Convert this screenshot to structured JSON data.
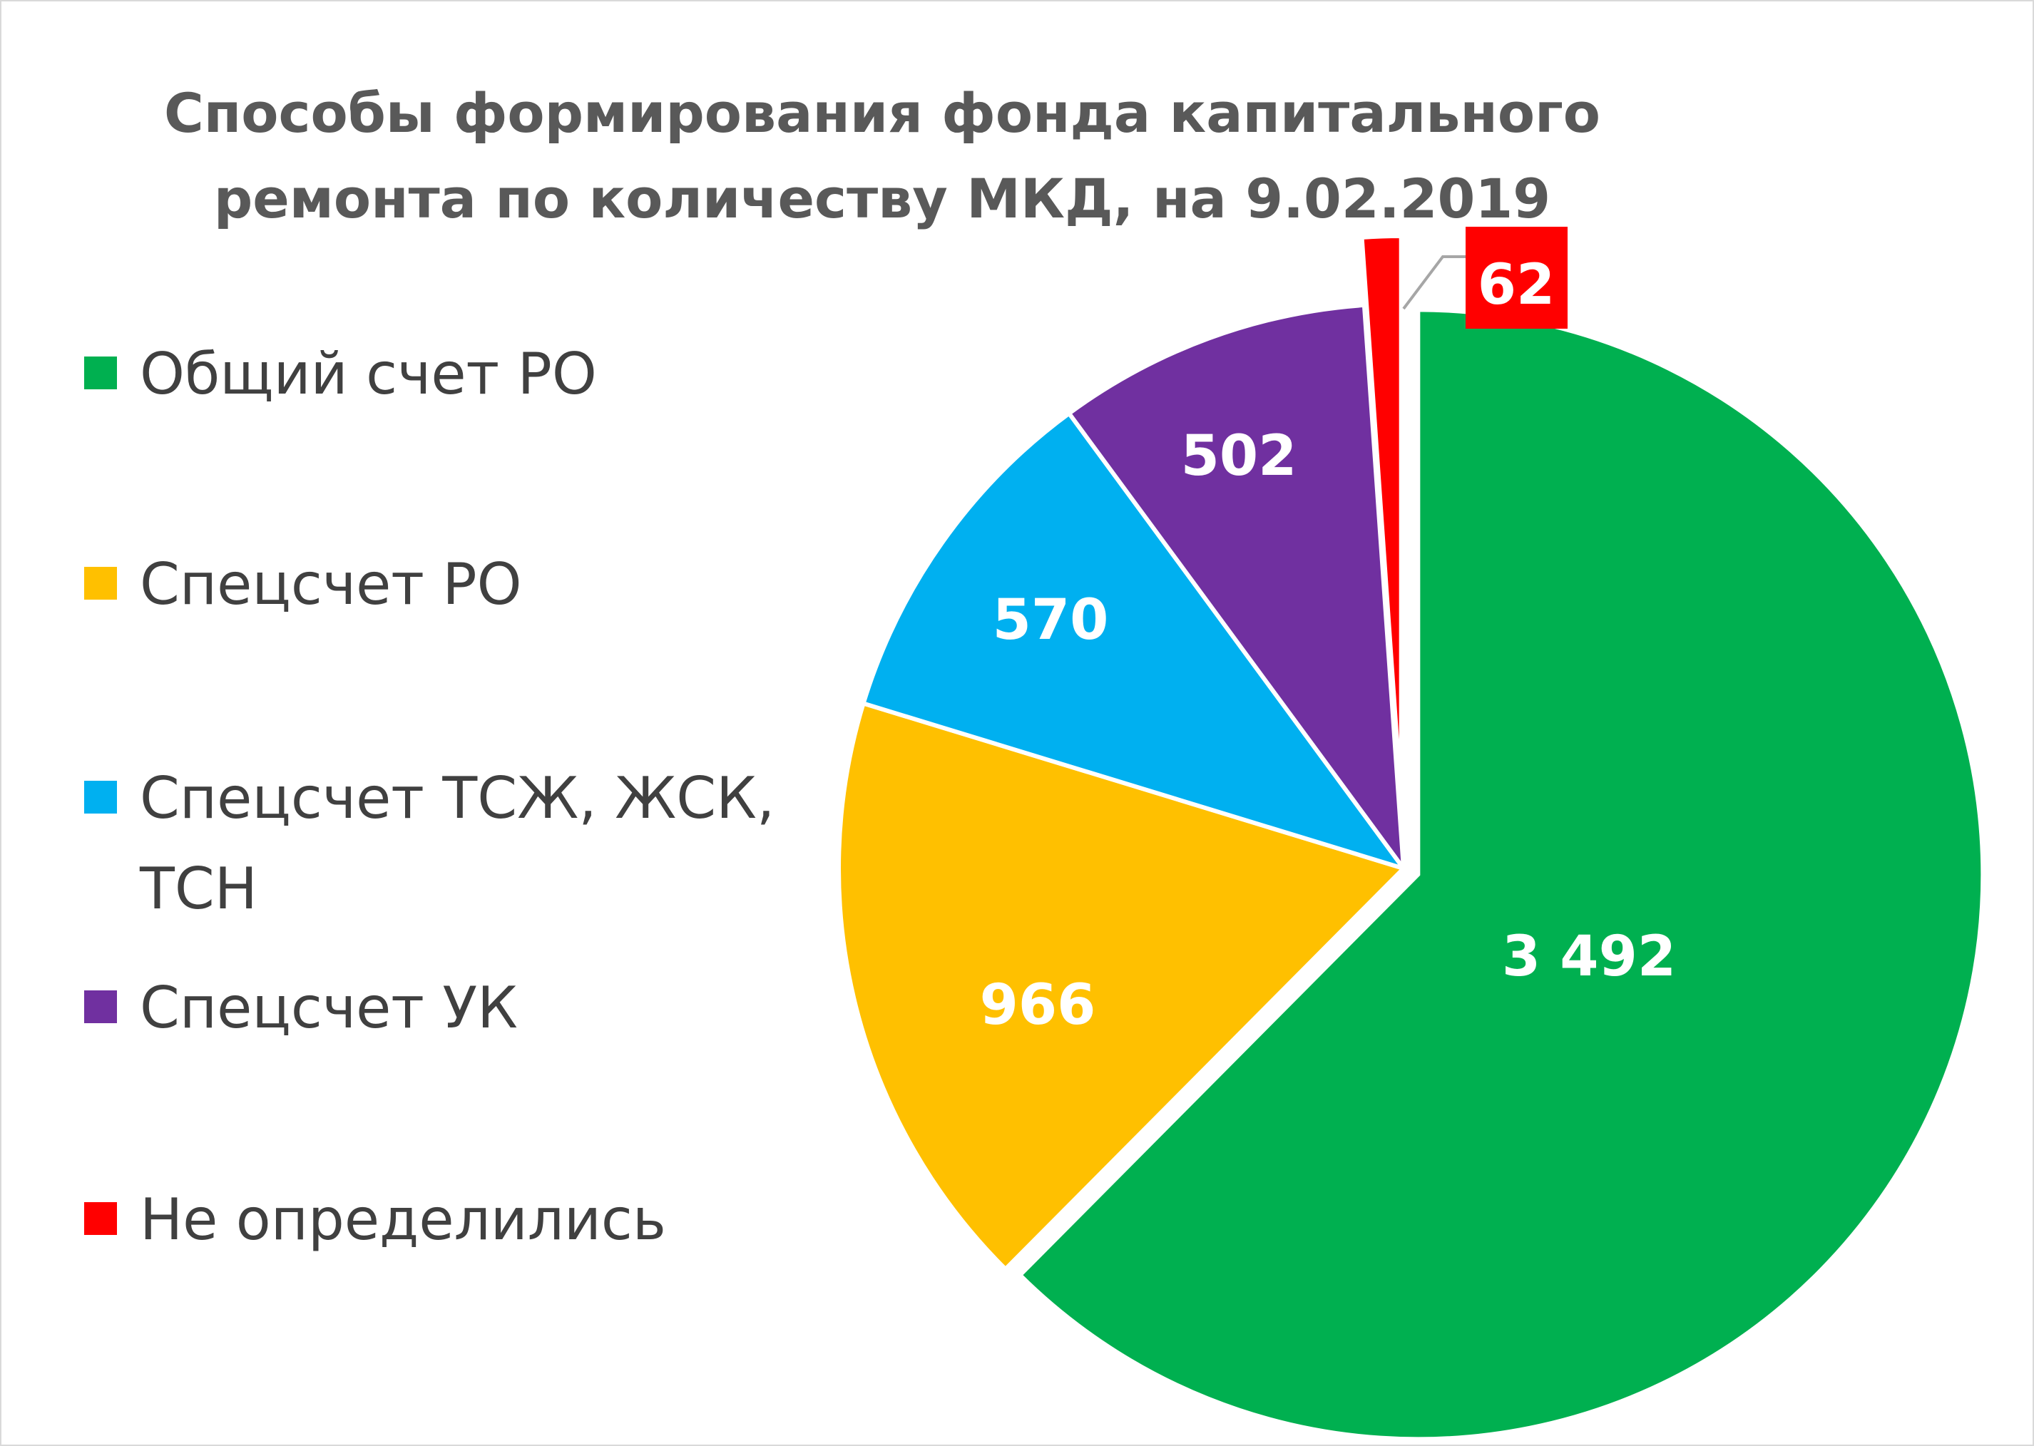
{
  "chart_data": {
    "type": "pie",
    "title": [
      "Способы формирования фонда капитального",
      "ремонта по количеству МКД, на 9.02.2019"
    ],
    "start_angle_deg": 0,
    "direction": "clockwise",
    "legend_position": "left",
    "slices": [
      {
        "name": "Общий счет РО",
        "legend_lines": [
          "Общий счет РО"
        ],
        "value": 3492,
        "label": "3 492",
        "color": "#00B050"
      },
      {
        "name": "Спецсчет РО",
        "legend_lines": [
          "Спецсчет РО"
        ],
        "value": 966,
        "label": "966",
        "color": "#FFC000"
      },
      {
        "name": "Спецсчет ТСЖ, ЖСК, ТСН",
        "legend_lines": [
          "Спецсчет ТСЖ, ЖСК,",
          "ТСН"
        ],
        "value": 570,
        "label": "570",
        "color": "#00B0F0"
      },
      {
        "name": "Спецсчет УК",
        "legend_lines": [
          "Спецсчет УК"
        ],
        "value": 502,
        "label": "502",
        "color": "#7030A0"
      },
      {
        "name": "Не определились",
        "legend_lines": [
          "Не определились"
        ],
        "value": 62,
        "label": "62",
        "color": "#FF0000"
      }
    ]
  }
}
